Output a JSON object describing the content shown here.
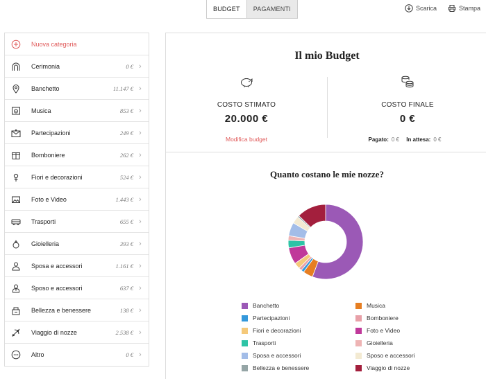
{
  "tabs": [
    {
      "label": "BUDGET",
      "active": true
    },
    {
      "label": "PAGAMENTI",
      "active": false
    }
  ],
  "toplinks": {
    "download": "Scarica",
    "print": "Stampa"
  },
  "sidebar": {
    "new_category": "Nuova categoria",
    "items": [
      {
        "label": "Cerimonia",
        "amount": "0 €",
        "icon": "church-arch-icon"
      },
      {
        "label": "Banchetto",
        "amount": "11.147 €",
        "icon": "location-pin-icon"
      },
      {
        "label": "Musica",
        "amount": "853 €",
        "icon": "speaker-icon"
      },
      {
        "label": "Partecipazioni",
        "amount": "249 €",
        "icon": "envelope-heart-icon"
      },
      {
        "label": "Bomboniere",
        "amount": "262 €",
        "icon": "gift-icon"
      },
      {
        "label": "Fiori e decorazioni",
        "amount": "524 €",
        "icon": "flower-icon"
      },
      {
        "label": "Foto e Video",
        "amount": "1.443 €",
        "icon": "photo-icon"
      },
      {
        "label": "Trasporti",
        "amount": "655 €",
        "icon": "bus-icon"
      },
      {
        "label": "Gioielleria",
        "amount": "393 €",
        "icon": "ring-icon"
      },
      {
        "label": "Sposa e accessori",
        "amount": "1.161 €",
        "icon": "bride-icon"
      },
      {
        "label": "Sposo e accessori",
        "amount": "637 €",
        "icon": "groom-icon"
      },
      {
        "label": "Bellezza e benessere",
        "amount": "138 €",
        "icon": "beauty-icon"
      },
      {
        "label": "Viaggio di nozze",
        "amount": "2.538 €",
        "icon": "plane-icon"
      },
      {
        "label": "Altro",
        "amount": "0 €",
        "icon": "more-icon"
      }
    ]
  },
  "main": {
    "title": "Il mio Budget",
    "estimated_label": "COSTO STIMATO",
    "estimated_value": "20.000 €",
    "edit_link": "Modifica budget",
    "final_label": "COSTO FINALE",
    "final_value": "0 €",
    "paid_label": "Pagato:",
    "paid_value": "0 €",
    "pending_label": "In attesa:",
    "pending_value": "0 €",
    "question": "Quanto costano le mie nozze?"
  },
  "chart_data": {
    "type": "pie",
    "donut": true,
    "categories": [
      "Banchetto",
      "Musica",
      "Partecipazioni",
      "Bomboniere",
      "Fiori e decorazioni",
      "Foto e Video",
      "Trasporti",
      "Gioielleria",
      "Sposa e accessori",
      "Sposo e accessori",
      "Bellezza e benessere",
      "Viaggio di nozze"
    ],
    "values": [
      11147,
      853,
      249,
      262,
      524,
      1443,
      655,
      393,
      1161,
      637,
      138,
      2538
    ],
    "colors": [
      "#9b59b6",
      "#e67e22",
      "#3498db",
      "#e8a0a8",
      "#f5c97a",
      "#c0399a",
      "#2ec4a6",
      "#eeb4b4",
      "#a3bde8",
      "#f3ead2",
      "#95a5a6",
      "#a31f3d"
    ],
    "legend_position": "bottom"
  }
}
